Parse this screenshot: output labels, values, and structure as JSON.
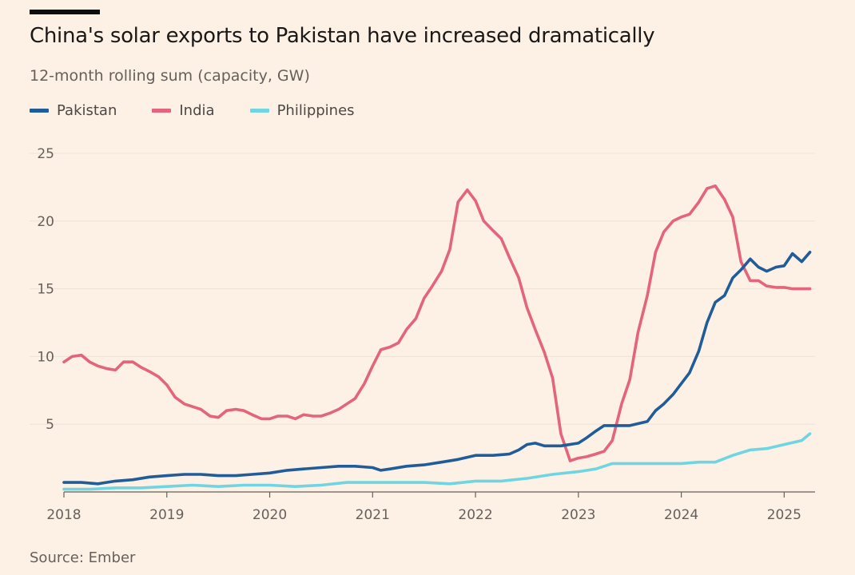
{
  "title": "China's solar exports to Pakistan have increased dramatically",
  "subtitle": "12-month rolling sum (capacity, GW)",
  "source": "Source: Ember",
  "chart_data": {
    "type": "line",
    "ylim": [
      0,
      25
    ],
    "xlim": [
      2018,
      2025.3
    ],
    "grid": true,
    "legend_position": "top-left",
    "y_ticks": [
      5,
      10,
      15,
      20,
      25
    ],
    "x_ticks": [
      2018,
      2019,
      2020,
      2021,
      2022,
      2023,
      2024,
      2025
    ],
    "x_tick_labels": [
      "2018",
      "2019",
      "2020",
      "2021",
      "2022",
      "2023",
      "2024",
      "2025"
    ],
    "series": [
      {
        "name": "Pakistan",
        "color": "#1F5C99",
        "x": [
          2018.0,
          2018.17,
          2018.33,
          2018.5,
          2018.67,
          2018.83,
          2019.0,
          2019.17,
          2019.33,
          2019.5,
          2019.67,
          2019.83,
          2020.0,
          2020.17,
          2020.33,
          2020.5,
          2020.67,
          2020.83,
          2021.0,
          2021.08,
          2021.17,
          2021.33,
          2021.5,
          2021.67,
          2021.83,
          2022.0,
          2022.17,
          2022.33,
          2022.42,
          2022.5,
          2022.58,
          2022.67,
          2022.83,
          2023.0,
          2023.08,
          2023.17,
          2023.25,
          2023.33,
          2023.5,
          2023.67,
          2023.75,
          2023.83,
          2023.92,
          2024.0,
          2024.08,
          2024.17,
          2024.25,
          2024.33,
          2024.42,
          2024.5,
          2024.58,
          2024.67,
          2024.75,
          2024.83,
          2024.92,
          2025.0,
          2025.08,
          2025.17,
          2025.25
        ],
        "values": [
          0.7,
          0.7,
          0.6,
          0.8,
          0.9,
          1.1,
          1.2,
          1.3,
          1.3,
          1.2,
          1.2,
          1.3,
          1.4,
          1.6,
          1.7,
          1.8,
          1.9,
          1.9,
          1.8,
          1.6,
          1.7,
          1.9,
          2.0,
          2.2,
          2.4,
          2.7,
          2.7,
          2.8,
          3.1,
          3.5,
          3.6,
          3.4,
          3.4,
          3.6,
          4.0,
          4.5,
          4.9,
          4.9,
          4.9,
          5.2,
          6.0,
          6.5,
          7.2,
          8.0,
          8.8,
          10.4,
          12.5,
          14.0,
          14.5,
          15.8,
          16.4,
          17.2,
          16.6,
          16.3,
          16.6,
          16.7,
          17.6,
          17.0,
          17.7
        ]
      },
      {
        "name": "India",
        "color": "#E3647B",
        "x": [
          2018.0,
          2018.08,
          2018.17,
          2018.25,
          2018.33,
          2018.42,
          2018.5,
          2018.58,
          2018.67,
          2018.75,
          2018.83,
          2018.92,
          2019.0,
          2019.08,
          2019.17,
          2019.25,
          2019.33,
          2019.42,
          2019.5,
          2019.58,
          2019.67,
          2019.75,
          2019.83,
          2019.92,
          2020.0,
          2020.08,
          2020.17,
          2020.25,
          2020.33,
          2020.42,
          2020.5,
          2020.58,
          2020.67,
          2020.75,
          2020.83,
          2020.92,
          2021.0,
          2021.08,
          2021.17,
          2021.25,
          2021.33,
          2021.42,
          2021.5,
          2021.58,
          2021.67,
          2021.75,
          2021.83,
          2021.92,
          2022.0,
          2022.08,
          2022.17,
          2022.25,
          2022.33,
          2022.42,
          2022.5,
          2022.58,
          2022.67,
          2022.75,
          2022.83,
          2022.92,
          2023.0,
          2023.08,
          2023.17,
          2023.25,
          2023.33,
          2023.42,
          2023.5,
          2023.58,
          2023.67,
          2023.75,
          2023.83,
          2023.92,
          2024.0,
          2024.08,
          2024.17,
          2024.25,
          2024.33,
          2024.42,
          2024.5,
          2024.58,
          2024.67,
          2024.75,
          2024.83,
          2024.92,
          2025.0,
          2025.08,
          2025.17,
          2025.25
        ],
        "values": [
          9.6,
          10.0,
          10.1,
          9.6,
          9.3,
          9.1,
          9.0,
          9.6,
          9.6,
          9.2,
          8.9,
          8.5,
          7.9,
          7.0,
          6.5,
          6.3,
          6.1,
          5.6,
          5.5,
          6.0,
          6.1,
          6.0,
          5.7,
          5.4,
          5.4,
          5.6,
          5.6,
          5.4,
          5.7,
          5.6,
          5.6,
          5.8,
          6.1,
          6.5,
          6.9,
          8.0,
          9.3,
          10.5,
          10.7,
          11.0,
          12.0,
          12.8,
          14.3,
          15.2,
          16.3,
          17.9,
          21.4,
          22.3,
          21.5,
          20.0,
          19.3,
          18.7,
          17.3,
          15.8,
          13.6,
          12.0,
          10.3,
          8.4,
          4.3,
          2.3,
          2.5,
          2.6,
          2.8,
          3.0,
          3.8,
          6.5,
          8.3,
          11.8,
          14.5,
          17.7,
          19.2,
          20.0,
          20.3,
          20.5,
          21.4,
          22.4,
          22.6,
          21.6,
          20.3,
          17.0,
          15.6,
          15.6,
          15.2,
          15.1,
          15.1,
          15.0,
          15.0,
          15.0
        ],
        "values_note_removed": true
      },
      {
        "name": "Philippines",
        "color": "#6FD5E3",
        "x": [
          2018.0,
          2018.25,
          2018.5,
          2018.75,
          2019.0,
          2019.25,
          2019.5,
          2019.75,
          2020.0,
          2020.25,
          2020.5,
          2020.75,
          2021.0,
          2021.25,
          2021.5,
          2021.75,
          2022.0,
          2022.25,
          2022.5,
          2022.75,
          2023.0,
          2023.17,
          2023.33,
          2023.5,
          2023.67,
          2023.83,
          2024.0,
          2024.17,
          2024.33,
          2024.5,
          2024.67,
          2024.83,
          2025.0,
          2025.17,
          2025.25
        ],
        "values": [
          0.2,
          0.2,
          0.3,
          0.3,
          0.4,
          0.5,
          0.4,
          0.5,
          0.5,
          0.4,
          0.5,
          0.7,
          0.7,
          0.7,
          0.7,
          0.6,
          0.8,
          0.8,
          1.0,
          1.3,
          1.5,
          1.7,
          2.1,
          2.1,
          2.1,
          2.1,
          2.1,
          2.2,
          2.2,
          2.7,
          3.1,
          3.2,
          3.5,
          3.8,
          4.3
        ]
      }
    ]
  }
}
